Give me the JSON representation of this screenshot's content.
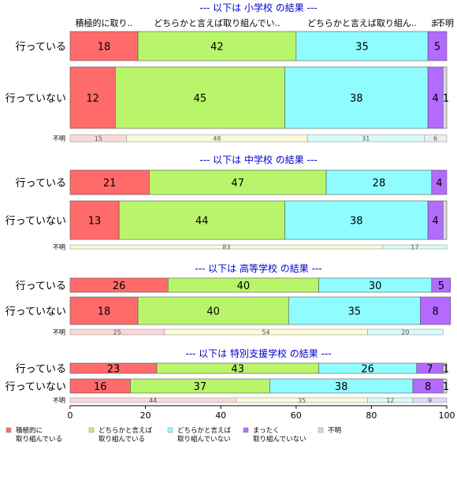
{
  "chart_data": {
    "type": "bar",
    "orientation": "horizontal-stacked-percent",
    "xlim": [
      0,
      100
    ],
    "x_ticks": [
      "0",
      "20",
      "40",
      "60",
      "80",
      "100"
    ],
    "colors": {
      "strong": "#ff6b6b",
      "somewhat": "#b9f56b",
      "not_much": "#8ffcff",
      "none": "#b36bff",
      "unknown": "#d9d9d9",
      "unknown_small": [
        "#fbd8d8",
        "#f8fbd6",
        "#d6fbfb",
        "#e6d6fb",
        "#ececec"
      ],
      "group_title": "#0000cc"
    },
    "legend": {
      "position": "bottom",
      "items": [
        {
          "key": "strong",
          "label": [
            "積極的に",
            "取り組んでいる"
          ]
        },
        {
          "key": "somewhat",
          "label": [
            "どちらかと言えば",
            "取り組んでいる"
          ]
        },
        {
          "key": "not_much",
          "label": [
            "どちらかと言えば",
            "取り組んでいない"
          ]
        },
        {
          "key": "none",
          "label": [
            "まったく",
            "取り組んでいない"
          ]
        },
        {
          "key": "unknown",
          "label": [
            "不明"
          ]
        }
      ]
    },
    "groups": [
      {
        "title": "--- 以下は 小学校 の結果 ---",
        "category_headers": [
          "積極的に取り..",
          "どちらかと言えば取り組んでい..",
          "どちらかと言えば取り組ん..",
          "ま..",
          "不明"
        ],
        "rows": [
          {
            "label": "行っている",
            "values": [
              18,
              42,
              35,
              5,
              0
            ],
            "value_labels": [
              "18",
              "42",
              "35",
              "5",
              ""
            ]
          },
          {
            "label": "行っていない",
            "values": [
              12,
              45,
              38,
              4,
              1
            ],
            "value_labels": [
              "12",
              "45",
              "38",
              "4",
              "1"
            ]
          }
        ],
        "unknown_row": {
          "label": "不明",
          "values": [
            15,
            48,
            31,
            0,
            6
          ],
          "value_labels": [
            "15",
            "48",
            "31",
            "",
            "6"
          ]
        }
      },
      {
        "title": "--- 以下は 中学校 の結果 ---",
        "rows": [
          {
            "label": "行っている",
            "values": [
              21,
              47,
              28,
              4,
              0
            ],
            "value_labels": [
              "21",
              "47",
              "28",
              "4",
              ""
            ]
          },
          {
            "label": "行っていない",
            "values": [
              13,
              44,
              38,
              4,
              1
            ],
            "value_labels": [
              "13",
              "44",
              "38",
              "4",
              ""
            ]
          }
        ],
        "unknown_row": {
          "label": "不明",
          "values": [
            0,
            83,
            17,
            0,
            0
          ],
          "value_labels": [
            "",
            "83",
            "17",
            "",
            ""
          ]
        }
      },
      {
        "title": "--- 以下は 高等学校 の結果 ---",
        "rows": [
          {
            "label": "行っている",
            "values": [
              26,
              40,
              30,
              5,
              0
            ],
            "value_labels": [
              "26",
              "40",
              "30",
              "5",
              ""
            ]
          },
          {
            "label": "行っていない",
            "values": [
              18,
              40,
              35,
              8,
              0
            ],
            "value_labels": [
              "18",
              "40",
              "35",
              "8",
              ""
            ]
          }
        ],
        "unknown_row": {
          "label": "不明",
          "values": [
            25,
            54,
            20,
            0,
            0
          ],
          "value_labels": [
            "25",
            "54",
            "20",
            "",
            ""
          ]
        }
      },
      {
        "title": "--- 以下は 特別支援学校 の結果 ---",
        "rows": [
          {
            "label": "行っている",
            "values": [
              23,
              43,
              26,
              7,
              1
            ],
            "value_labels": [
              "23",
              "43",
              "26",
              "7",
              "1"
            ]
          },
          {
            "label": "行っていない",
            "values": [
              16,
              37,
              38,
              8,
              1
            ],
            "value_labels": [
              "16",
              "37",
              "38",
              "8",
              "1"
            ]
          }
        ],
        "unknown_row": {
          "label": "不明",
          "values": [
            44,
            35,
            12,
            9,
            0
          ],
          "value_labels": [
            "44",
            "35",
            "12",
            "9",
            ""
          ]
        }
      }
    ]
  }
}
